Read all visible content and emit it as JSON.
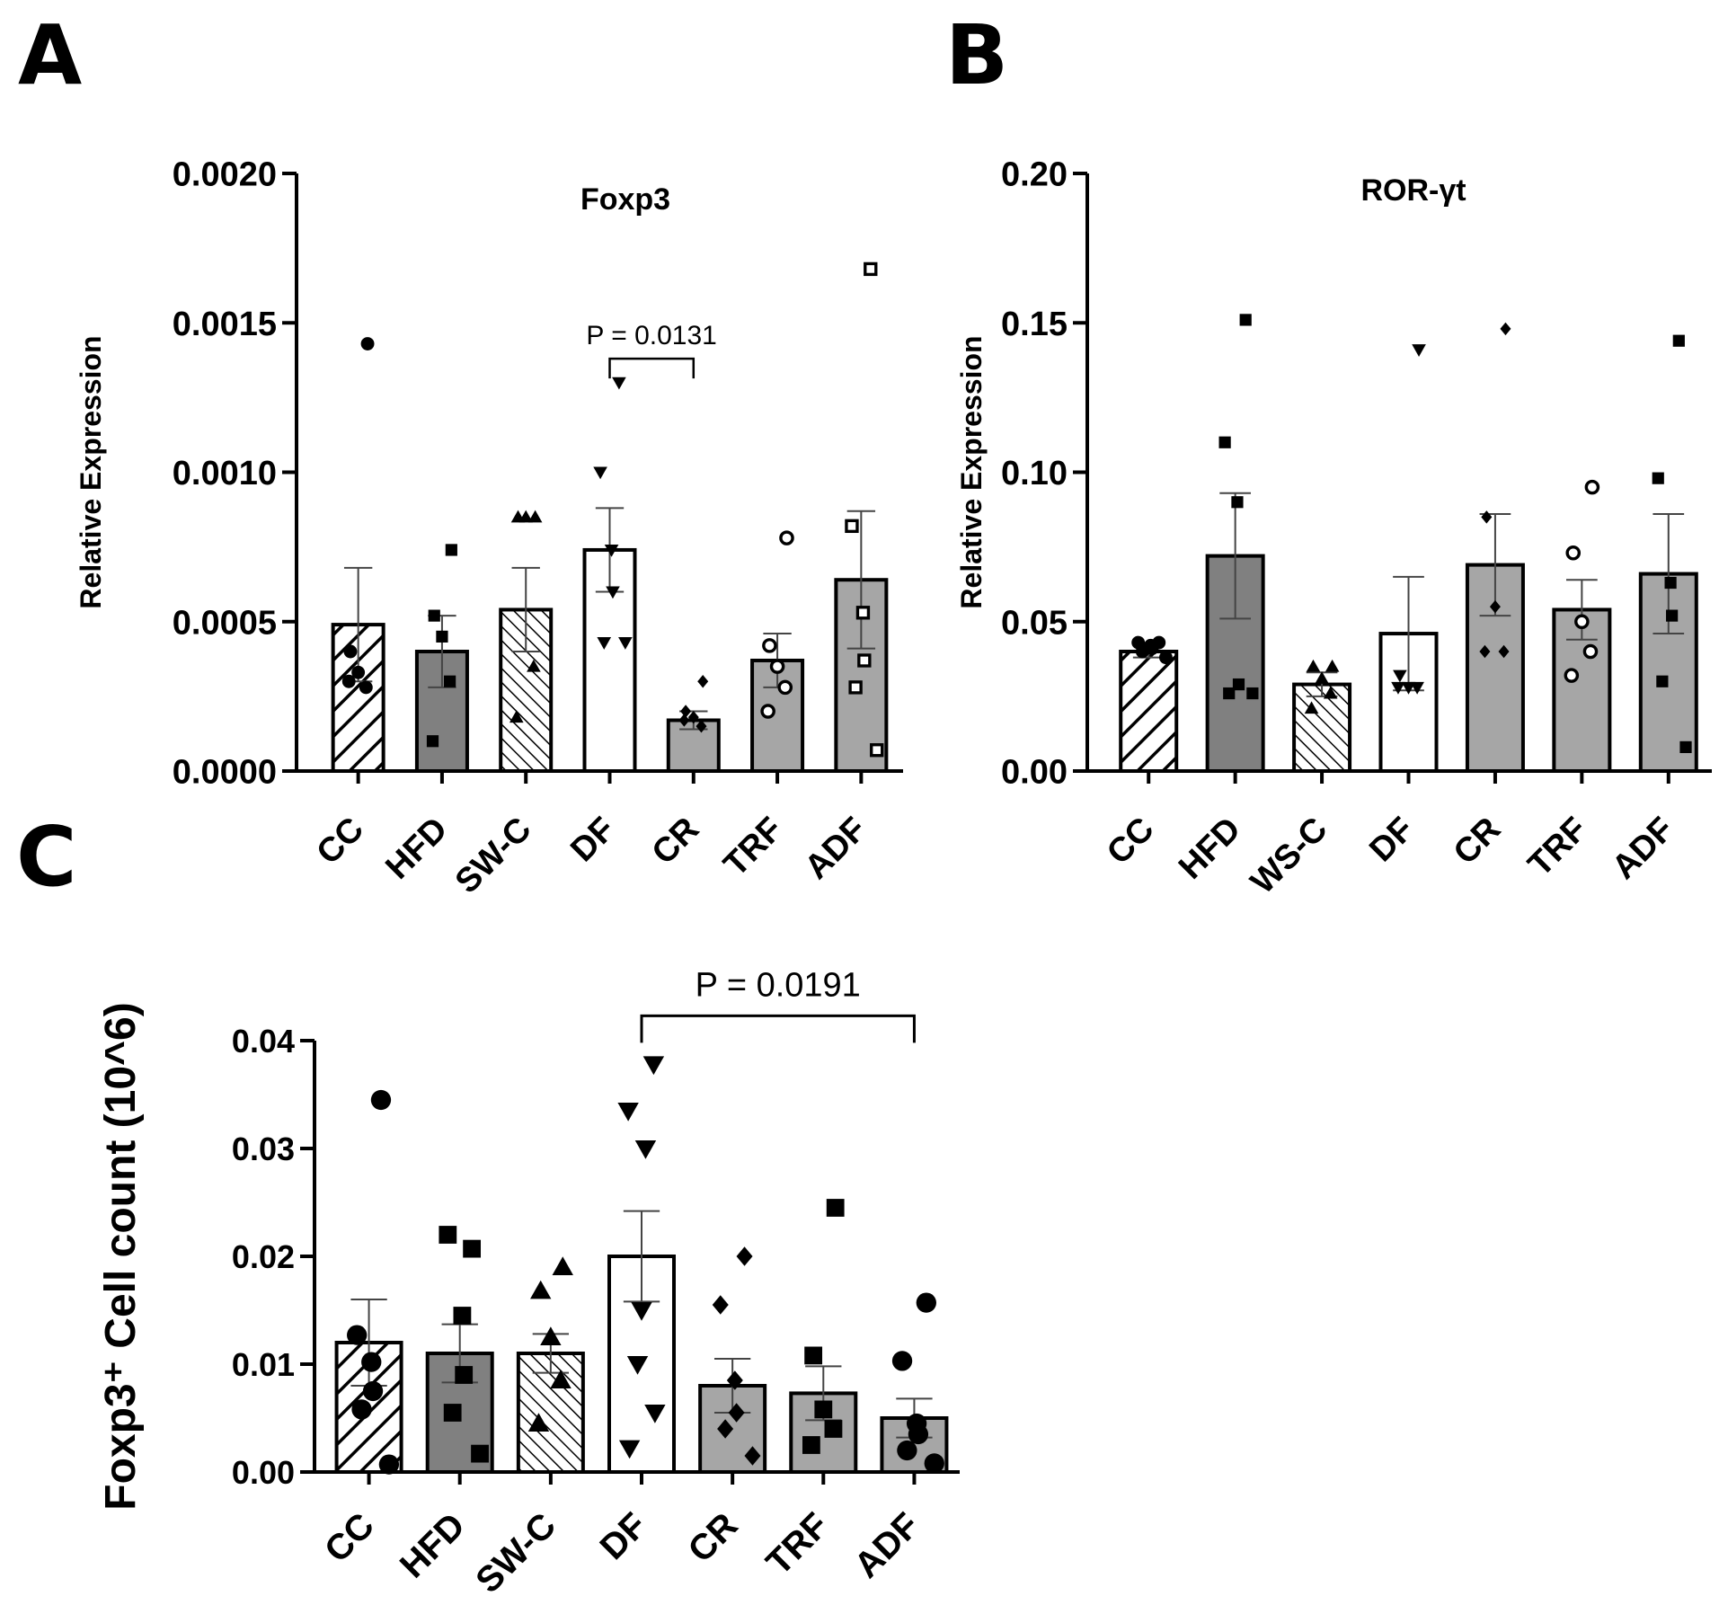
{
  "panels": {
    "A": "A",
    "B": "B",
    "C": "C"
  },
  "chart_data": [
    {
      "id": "A",
      "type": "bar",
      "title": "Foxp3",
      "ylabel": "Relative Expression",
      "xlabel": "",
      "ylim": [
        0,
        0.002
      ],
      "yticks": [
        0,
        0.0005,
        0.001,
        0.0015,
        0.002
      ],
      "ytick_labels": [
        "0.0000",
        "0.0005",
        "0.0010",
        "0.0015",
        "0.0020"
      ],
      "categories": [
        "CC",
        "HFD",
        "SW-C",
        "DF",
        "CR",
        "TRF",
        "ADF"
      ],
      "values": [
        0.00049,
        0.0004,
        0.00054,
        0.00074,
        0.00017,
        0.00037,
        0.00064
      ],
      "errors": [
        0.00019,
        0.00012,
        0.00014,
        0.00014,
        3e-05,
        9e-05,
        0.00023
      ],
      "fills": [
        "hatch",
        "#808080",
        "hatch-dense",
        "#ffffff",
        "#a6a6a6",
        "#a6a6a6",
        "#a6a6a6"
      ],
      "markers": [
        "circle",
        "square",
        "triangle",
        "triangle-down",
        "diamond",
        "circle-open",
        "square-open"
      ],
      "points": [
        [
          0.00143,
          0.0004,
          0.00033,
          0.00028,
          0.0003
        ],
        [
          0.00074,
          0.00052,
          0.00045,
          0.0003,
          0.0001
        ],
        [
          0.00085,
          0.00085,
          0.00085,
          0.00035,
          0.00018
        ],
        [
          0.0013,
          0.001,
          0.00074,
          0.0006,
          0.00043,
          0.00043
        ],
        [
          0.0003,
          0.0002,
          0.00018,
          0.00015,
          0.00017
        ],
        [
          0.00078,
          0.00042,
          0.00035,
          0.00028,
          0.0002
        ],
        [
          0.00168,
          0.00082,
          0.00053,
          0.00037,
          0.00028,
          7e-05
        ]
      ],
      "significance": {
        "from": 3,
        "to": 4,
        "label": "P = 0.0131",
        "y": 0.00138
      }
    },
    {
      "id": "B",
      "type": "bar",
      "title": "ROR-γt",
      "ylabel": "Relative Expression",
      "xlabel": "",
      "ylim": [
        0,
        0.2
      ],
      "yticks": [
        0,
        0.05,
        0.1,
        0.15,
        0.2
      ],
      "ytick_labels": [
        "0.00",
        "0.05",
        "0.10",
        "0.15",
        "0.20"
      ],
      "categories": [
        "CC",
        "HFD",
        "WS-C",
        "DF",
        "CR",
        "TRF",
        "ADF"
      ],
      "values": [
        0.04,
        0.072,
        0.029,
        0.046,
        0.069,
        0.054,
        0.066
      ],
      "errors": [
        0.002,
        0.021,
        0.004,
        0.019,
        0.017,
        0.01,
        0.02
      ],
      "fills": [
        "hatch",
        "#808080",
        "hatch-dense",
        "#ffffff",
        "#a6a6a6",
        "#a6a6a6",
        "#a6a6a6"
      ],
      "markers": [
        "circle",
        "square",
        "triangle",
        "triangle-down",
        "diamond",
        "circle-open",
        "square"
      ],
      "points": [
        [
          0.043,
          0.043,
          0.042,
          0.041,
          0.04,
          0.038
        ],
        [
          0.151,
          0.11,
          0.09,
          0.029,
          0.026,
          0.026
        ],
        [
          0.035,
          0.035,
          0.031,
          0.026,
          0.021
        ],
        [
          0.141,
          0.032,
          0.028,
          0.028,
          0.028
        ],
        [
          0.148,
          0.085,
          0.055,
          0.04,
          0.04
        ],
        [
          0.095,
          0.073,
          0.05,
          0.04,
          0.032
        ],
        [
          0.144,
          0.098,
          0.063,
          0.052,
          0.03,
          0.008
        ]
      ]
    },
    {
      "id": "C",
      "type": "bar",
      "title": "",
      "ylabel": "Foxp3⁺ Cell count (10^6)",
      "xlabel": "",
      "ylim": [
        0,
        0.04
      ],
      "yticks": [
        0,
        0.01,
        0.02,
        0.03,
        0.04
      ],
      "ytick_labels": [
        "0.00",
        "0.01",
        "0.02",
        "0.03",
        "0.04"
      ],
      "categories": [
        "CC",
        "HFD",
        "SW-C",
        "DF",
        "CR",
        "TRF",
        "ADF"
      ],
      "values": [
        0.012,
        0.011,
        0.011,
        0.02,
        0.008,
        0.0073,
        0.005
      ],
      "errors": [
        0.004,
        0.0027,
        0.0018,
        0.0042,
        0.0025,
        0.0025,
        0.0018
      ],
      "fills": [
        "hatch",
        "#808080",
        "hatch-dense",
        "#ffffff",
        "#a6a6a6",
        "#a6a6a6",
        "#a6a6a6"
      ],
      "markers": [
        "circle",
        "square",
        "triangle",
        "triangle-down",
        "diamond",
        "square",
        "circle"
      ],
      "points": [
        [
          0.0345,
          0.0127,
          0.0102,
          0.0075,
          0.0058,
          0.0007
        ],
        [
          0.0207,
          0.022,
          0.0145,
          0.009,
          0.0055,
          0.0017
        ],
        [
          0.019,
          0.0168,
          0.0125,
          0.0085,
          0.0045
        ],
        [
          0.0378,
          0.0335,
          0.03,
          0.015,
          0.01,
          0.0055,
          0.0022
        ],
        [
          0.02,
          0.0155,
          0.0085,
          0.0055,
          0.004,
          0.0015
        ],
        [
          0.0245,
          0.0108,
          0.0058,
          0.004,
          0.0025
        ],
        [
          0.0157,
          0.0103,
          0.0045,
          0.0035,
          0.002,
          0.0008
        ]
      ],
      "significance": {
        "from": 3,
        "to": 6,
        "label": "P = 0.0191",
        "y": 0.0423
      }
    }
  ]
}
